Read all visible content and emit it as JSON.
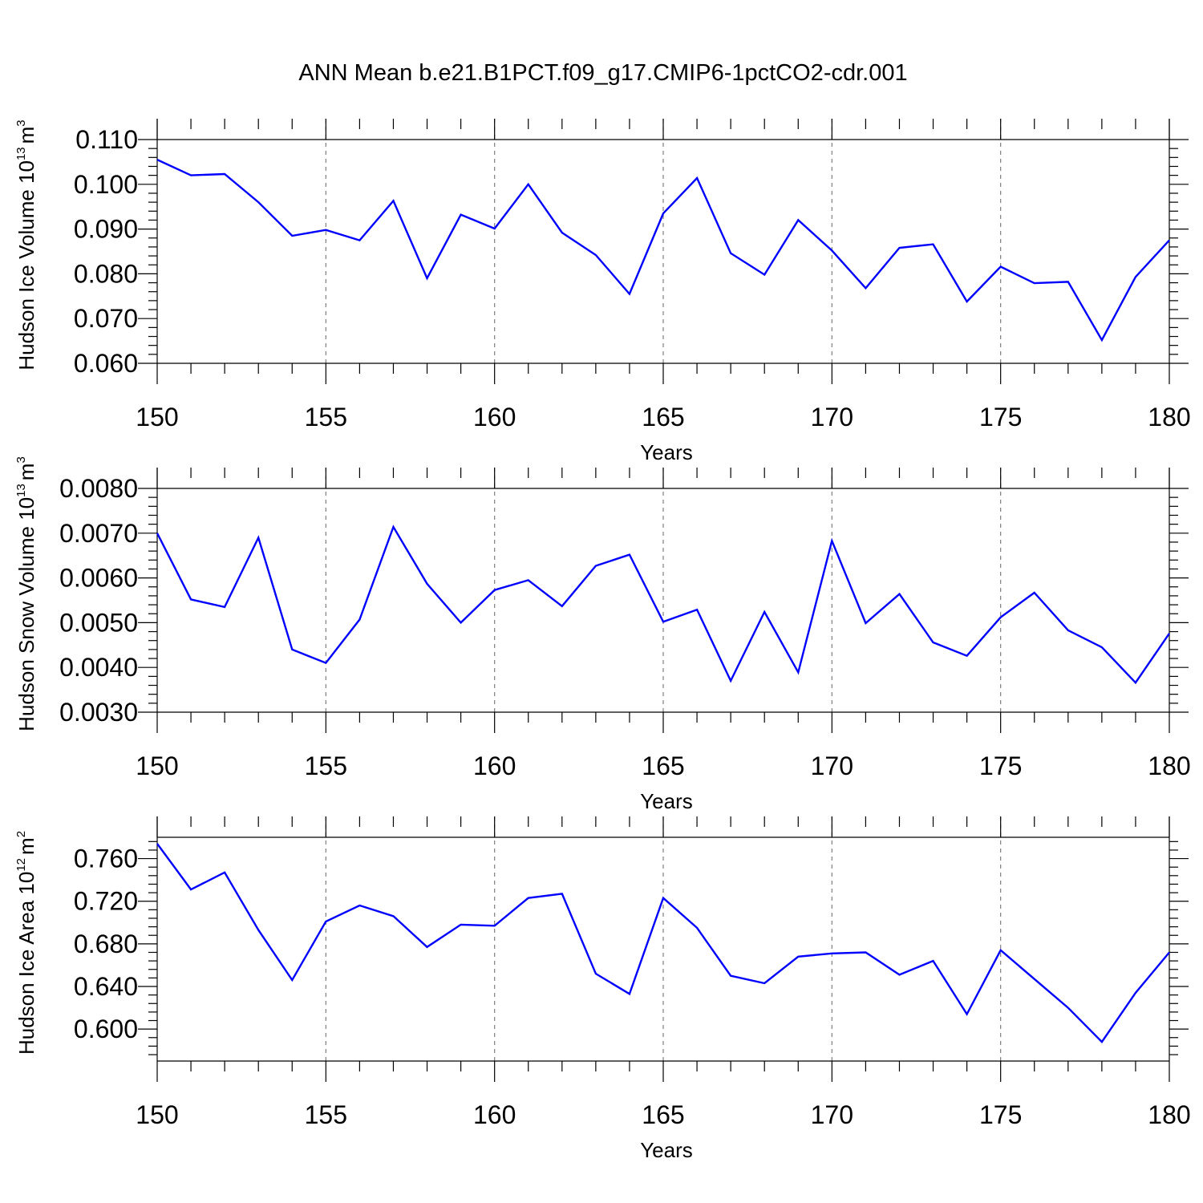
{
  "title": "ANN Mean b.e21.B1PCT.f09_g17.CMIP6-1pctCO2-cdr.001",
  "colors": {
    "line": "#0000ff",
    "axis": "#000000",
    "grid": "#7f7f7f"
  },
  "chart_data": [
    {
      "type": "line",
      "xlabel": "Years",
      "ylabel": {
        "prefix": "Hudson Ice Volume 10",
        "exp": "13",
        "unit": "m",
        "unit_exp": "3"
      },
      "xlim": [
        150,
        180
      ],
      "ylim": [
        0.06,
        0.11
      ],
      "xticks": [
        150,
        155,
        160,
        165,
        170,
        175,
        180
      ],
      "xtick_labels": [
        "150",
        "155",
        "160",
        "165",
        "170",
        "175",
        "180"
      ],
      "yticks": [
        0.06,
        0.07,
        0.08,
        0.09,
        0.1,
        0.11
      ],
      "ytick_labels": [
        "0.060",
        "0.070",
        "0.080",
        "0.090",
        "0.100",
        "0.110"
      ],
      "x": [
        150,
        151,
        152,
        153,
        154,
        155,
        156,
        157,
        158,
        159,
        160,
        161,
        162,
        163,
        164,
        165,
        166,
        167,
        168,
        169,
        170,
        171,
        172,
        173,
        174,
        175,
        176,
        177,
        178,
        179,
        180
      ],
      "series": [
        {
          "values": [
            0.1055,
            0.102,
            0.1023,
            0.096,
            0.0885,
            0.0898,
            0.0875,
            0.0963,
            0.079,
            0.0932,
            0.0901,
            0.1,
            0.0892,
            0.0842,
            0.0755,
            0.0935,
            0.1014,
            0.0846,
            0.0798,
            0.092,
            0.0852,
            0.0768,
            0.0858,
            0.0866,
            0.0738,
            0.0816,
            0.0779,
            0.0782,
            0.0652,
            0.0793,
            0.0875
          ]
        }
      ]
    },
    {
      "type": "line",
      "xlabel": "Years",
      "ylabel": {
        "prefix": "Hudson Snow Volume 10",
        "exp": "13",
        "unit": "m",
        "unit_exp": "3"
      },
      "xlim": [
        150,
        180
      ],
      "ylim": [
        0.003,
        0.008
      ],
      "xticks": [
        150,
        155,
        160,
        165,
        170,
        175,
        180
      ],
      "xtick_labels": [
        "150",
        "155",
        "160",
        "165",
        "170",
        "175",
        "180"
      ],
      "yticks": [
        0.003,
        0.004,
        0.005,
        0.006,
        0.007,
        0.008
      ],
      "ytick_labels": [
        "0.0030",
        "0.0040",
        "0.0050",
        "0.0060",
        "0.0070",
        "0.0080"
      ],
      "x": [
        150,
        151,
        152,
        153,
        154,
        155,
        156,
        157,
        158,
        159,
        160,
        161,
        162,
        163,
        164,
        165,
        166,
        167,
        168,
        169,
        170,
        171,
        172,
        173,
        174,
        175,
        176,
        177,
        178,
        179,
        180
      ],
      "series": [
        {
          "values": [
            0.007,
            0.00552,
            0.00535,
            0.0069,
            0.0044,
            0.0041,
            0.00507,
            0.00714,
            0.00587,
            0.005,
            0.00573,
            0.00595,
            0.00537,
            0.00627,
            0.00652,
            0.00502,
            0.00529,
            0.0037,
            0.00524,
            0.00389,
            0.00683,
            0.00499,
            0.00564,
            0.00456,
            0.00426,
            0.00512,
            0.00567,
            0.00483,
            0.00445,
            0.00366,
            0.00476
          ]
        }
      ]
    },
    {
      "type": "line",
      "xlabel": "Years",
      "ylabel": {
        "prefix": "Hudson Ice Area 10",
        "exp": "12",
        "unit": "m",
        "unit_exp": "2"
      },
      "xlim": [
        150,
        180
      ],
      "ylim": [
        0.57,
        0.78
      ],
      "xticks": [
        150,
        155,
        160,
        165,
        170,
        175,
        180
      ],
      "xtick_labels": [
        "150",
        "155",
        "160",
        "165",
        "170",
        "175",
        "180"
      ],
      "yticks": [
        0.6,
        0.64,
        0.68,
        0.72,
        0.76
      ],
      "ytick_labels": [
        "0.600",
        "0.640",
        "0.680",
        "0.720",
        "0.760"
      ],
      "x": [
        150,
        151,
        152,
        153,
        154,
        155,
        156,
        157,
        158,
        159,
        160,
        161,
        162,
        163,
        164,
        165,
        166,
        167,
        168,
        169,
        170,
        171,
        172,
        173,
        174,
        175,
        176,
        177,
        178,
        179,
        180
      ],
      "series": [
        {
          "values": [
            0.774,
            0.731,
            0.747,
            0.693,
            0.646,
            0.701,
            0.716,
            0.706,
            0.677,
            0.698,
            0.697,
            0.723,
            0.727,
            0.652,
            0.633,
            0.723,
            0.695,
            0.65,
            0.643,
            0.668,
            0.671,
            0.672,
            0.651,
            0.664,
            0.614,
            0.674,
            0.647,
            0.62,
            0.588,
            0.634,
            0.672
          ]
        }
      ]
    }
  ]
}
